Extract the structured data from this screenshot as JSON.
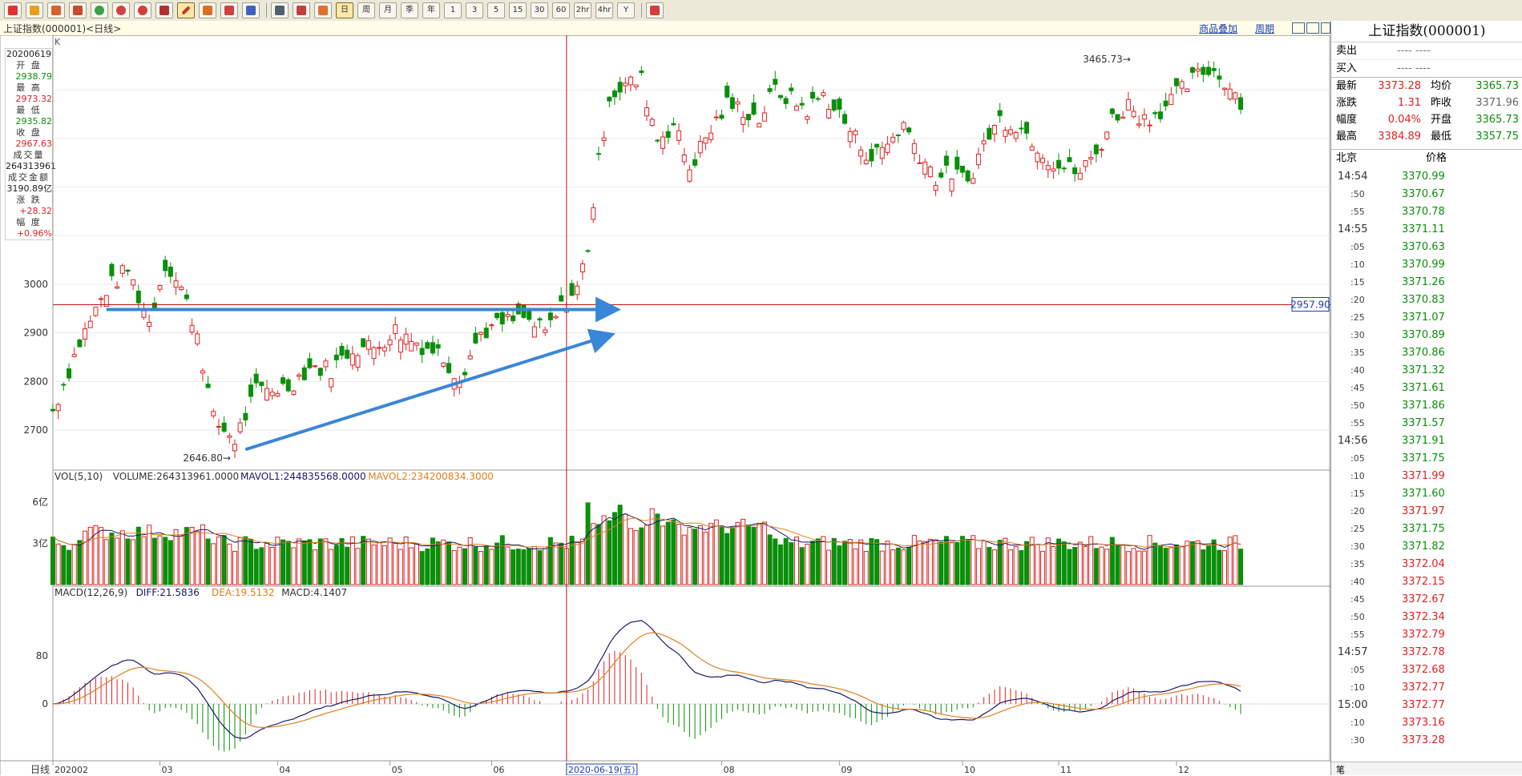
{
  "toolbar": {
    "period_buttons": [
      "日",
      "周",
      "月",
      "季",
      "年",
      "1",
      "3",
      "5",
      "15",
      "30",
      "60",
      "2hr",
      "4hr",
      "Y"
    ]
  },
  "title_bar": {
    "left": "上证指数(000001)<日线>",
    "overlay_label": "商品叠加",
    "period_label": "周期"
  },
  "left_info": {
    "date": "20200619",
    "open_label": "开  盘",
    "open": "2938.79",
    "high_label": "最  高",
    "high": "2973.32",
    "low_label": "最  低",
    "low": "2935.82",
    "close_label": "收  盘",
    "close": "2967.63",
    "volume_label": "成交量",
    "volume": "264313961",
    "amount_label": "成交金额",
    "amount": "3190.89亿",
    "change_label": "涨  跌",
    "change": "+28.32",
    "pct_label": "幅  度",
    "pct": "+0.96%"
  },
  "chart_data": {
    "type": "candlestick",
    "k_label": "K",
    "price_ticks": [
      "3000",
      "2900",
      "2800",
      "2700"
    ],
    "crosshair_price": "2957.90",
    "high_annotation": "3465.73",
    "low_annotation": "2646.80",
    "volume_legend": {
      "name": "VOL(5,10)",
      "volume": "VOLUME:264313961.0000",
      "mavol1": "MAVOL1:244835568.0000",
      "mavol2": "MAVOL2:234200834.3000"
    },
    "volume_ticks": [
      "6亿",
      "3亿"
    ],
    "macd_legend": {
      "name": "MACD(12,26,9)",
      "diff": "DIFF:21.5836",
      "dea": "DEA:19.5132",
      "macd": "MACD:4.1407"
    },
    "macd_ticks": [
      "80",
      "0"
    ],
    "x_axis_label": "日线",
    "x_labels": [
      {
        "text": "202002",
        "i": 0
      },
      {
        "text": "03",
        "i": 20
      },
      {
        "text": "04",
        "i": 42
      },
      {
        "text": "05",
        "i": 63
      },
      {
        "text": "06",
        "i": 82
      },
      {
        "text": "2020-06-19(五)",
        "i": 96
      },
      {
        "text": "08",
        "i": 125
      },
      {
        "text": "09",
        "i": 147
      },
      {
        "text": "10",
        "i": 170
      },
      {
        "text": "11",
        "i": 188
      },
      {
        "text": "12",
        "i": 210
      }
    ],
    "crosshair_index": 96,
    "ohlc_ranges": [
      [
        0,
        2740,
        2740
      ],
      [
        5,
        2880,
        2870
      ],
      [
        10,
        2990,
        2985
      ],
      [
        14,
        3030,
        3010
      ],
      [
        18,
        2920,
        2950
      ],
      [
        21,
        3045,
        3050
      ],
      [
        24,
        2990,
        2990
      ],
      [
        27,
        2900,
        2890
      ],
      [
        30,
        2720,
        2700
      ],
      [
        34,
        2680,
        2690
      ],
      [
        38,
        2780,
        2780
      ],
      [
        44,
        2790,
        2800
      ],
      [
        48,
        2830,
        2830
      ],
      [
        52,
        2825,
        2810
      ],
      [
        56,
        2870,
        2870
      ],
      [
        60,
        2870,
        2860
      ],
      [
        64,
        2905,
        2905
      ],
      [
        68,
        2880,
        2875
      ],
      [
        72,
        2860,
        2860
      ],
      [
        76,
        2810,
        2810
      ],
      [
        80,
        2900,
        2900
      ],
      [
        84,
        2920,
        2915
      ],
      [
        88,
        2930,
        2930
      ],
      [
        92,
        2900,
        2900
      ],
      [
        96,
        2967,
        2967
      ],
      [
        98,
        2990,
        2990
      ],
      [
        100,
        3080,
        3080
      ],
      [
        102,
        3250,
        3250
      ],
      [
        104,
        3390,
        3390
      ],
      [
        107,
        3410,
        3400
      ],
      [
        110,
        3420,
        3420
      ],
      [
        113,
        3300,
        3300
      ],
      [
        116,
        3330,
        3320
      ],
      [
        119,
        3240,
        3240
      ],
      [
        122,
        3300,
        3300
      ],
      [
        126,
        3370,
        3370
      ],
      [
        129,
        3360,
        3350
      ],
      [
        132,
        3340,
        3350
      ],
      [
        135,
        3400,
        3400
      ],
      [
        138,
        3380,
        3380
      ],
      [
        141,
        3360,
        3370
      ],
      [
        144,
        3390,
        3390
      ],
      [
        147,
        3350,
        3350
      ],
      [
        150,
        3300,
        3300
      ],
      [
        153,
        3260,
        3260
      ],
      [
        156,
        3290,
        3290
      ],
      [
        159,
        3330,
        3330
      ],
      [
        162,
        3270,
        3270
      ],
      [
        165,
        3220,
        3220
      ],
      [
        168,
        3230,
        3230
      ],
      [
        171,
        3210,
        3210
      ],
      [
        174,
        3290,
        3290
      ],
      [
        177,
        3340,
        3340
      ],
      [
        180,
        3330,
        3330
      ],
      [
        183,
        3300,
        3300
      ],
      [
        186,
        3260,
        3260
      ],
      [
        189,
        3240,
        3240
      ],
      [
        192,
        3230,
        3230
      ],
      [
        195,
        3270,
        3270
      ],
      [
        198,
        3340,
        3340
      ],
      [
        201,
        3370,
        3370
      ],
      [
        204,
        3340,
        3340
      ],
      [
        207,
        3360,
        3360
      ],
      [
        210,
        3390,
        3390
      ],
      [
        213,
        3420,
        3420
      ],
      [
        216,
        3445,
        3445
      ],
      [
        219,
        3420,
        3420
      ],
      [
        222,
        3380,
        3375
      ]
    ],
    "arrows": [
      {
        "from": [
          10,
          2948
        ],
        "to": [
          105,
          2948
        ]
      },
      {
        "from": [
          36,
          2660
        ],
        "to": [
          104,
          2895
        ]
      }
    ],
    "index_count": 223
  },
  "quote": {
    "title": "上证指数(000001)",
    "sell_label": "卖出",
    "sell_val": "----  ----",
    "buy_label": "买入",
    "buy_val": "----  ----",
    "rows": [
      {
        "l1": "最新",
        "v1": "3373.28",
        "c1": "red",
        "l2": "均价",
        "v2": "3365.73",
        "c2": "grn"
      },
      {
        "l1": "涨跌",
        "v1": "1.31",
        "c1": "red",
        "l2": "昨收",
        "v2": "3371.96",
        "c2": "gry"
      },
      {
        "l1": "幅度",
        "v1": "0.04%",
        "c1": "red",
        "l2": "开盘",
        "v2": "3365.73",
        "c2": "grn"
      },
      {
        "l1": "最高",
        "v1": "3384.89",
        "c1": "red",
        "l2": "最低",
        "v2": "3357.75",
        "c2": "grn"
      }
    ],
    "tick_header_time": "北京",
    "tick_header_price": "价格",
    "ticks": [
      {
        "t": "14:54",
        "p": "3370.99",
        "c": "grn",
        "main": true
      },
      {
        "t": ":50",
        "p": "3370.67",
        "c": "grn"
      },
      {
        "t": ":55",
        "p": "3370.78",
        "c": "grn"
      },
      {
        "t": "14:55",
        "p": "3371.11",
        "c": "grn",
        "main": true
      },
      {
        "t": ":05",
        "p": "3370.63",
        "c": "grn"
      },
      {
        "t": ":10",
        "p": "3370.99",
        "c": "grn"
      },
      {
        "t": ":15",
        "p": "3371.26",
        "c": "grn"
      },
      {
        "t": ":20",
        "p": "3370.83",
        "c": "grn"
      },
      {
        "t": ":25",
        "p": "3371.07",
        "c": "grn"
      },
      {
        "t": ":30",
        "p": "3370.89",
        "c": "grn"
      },
      {
        "t": ":35",
        "p": "3370.86",
        "c": "grn"
      },
      {
        "t": ":40",
        "p": "3371.32",
        "c": "grn"
      },
      {
        "t": ":45",
        "p": "3371.61",
        "c": "grn"
      },
      {
        "t": ":50",
        "p": "3371.86",
        "c": "grn"
      },
      {
        "t": ":55",
        "p": "3371.57",
        "c": "grn"
      },
      {
        "t": "14:56",
        "p": "3371.91",
        "c": "grn",
        "main": true
      },
      {
        "t": ":05",
        "p": "3371.75",
        "c": "grn"
      },
      {
        "t": ":10",
        "p": "3371.99",
        "c": "red"
      },
      {
        "t": ":15",
        "p": "3371.60",
        "c": "grn"
      },
      {
        "t": ":20",
        "p": "3371.97",
        "c": "red"
      },
      {
        "t": ":25",
        "p": "3371.75",
        "c": "grn"
      },
      {
        "t": ":30",
        "p": "3371.82",
        "c": "grn"
      },
      {
        "t": ":35",
        "p": "3372.04",
        "c": "red"
      },
      {
        "t": ":40",
        "p": "3372.15",
        "c": "red"
      },
      {
        "t": ":45",
        "p": "3372.67",
        "c": "red"
      },
      {
        "t": ":50",
        "p": "3372.34",
        "c": "red"
      },
      {
        "t": ":55",
        "p": "3372.79",
        "c": "red"
      },
      {
        "t": "14:57",
        "p": "3372.78",
        "c": "red",
        "main": true
      },
      {
        "t": ":05",
        "p": "3372.68",
        "c": "red"
      },
      {
        "t": ":10",
        "p": "3372.77",
        "c": "red"
      },
      {
        "t": "15:00",
        "p": "3372.77",
        "c": "red",
        "main": true
      },
      {
        "t": ":10",
        "p": "3373.16",
        "c": "red"
      },
      {
        "t": ":30",
        "p": "3373.28",
        "c": "red"
      }
    ],
    "foot_label": "笔"
  }
}
